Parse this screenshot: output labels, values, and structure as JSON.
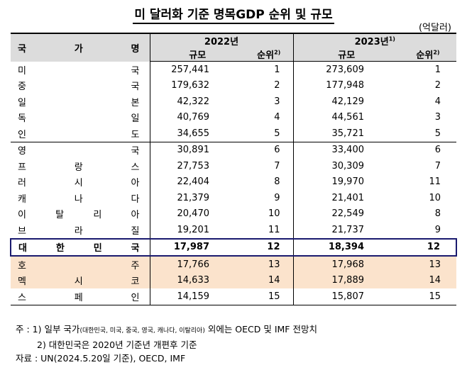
{
  "title": "미 달러화 기준 명목GDP 순위 및 규모",
  "unit": "(억달러)",
  "headers": {
    "country_chars": [
      "국",
      "가",
      "명"
    ],
    "year1": "2022년",
    "year2": "2023년",
    "year2_note": "1)",
    "size": "규모",
    "rank": "순위",
    "rank_note": "2)"
  },
  "rows": [
    {
      "chars": [
        "미",
        "국"
      ],
      "v2022": "257,441",
      "r2022": "1",
      "v2023": "273,609",
      "r2023": "1"
    },
    {
      "chars": [
        "중",
        "국"
      ],
      "v2022": "179,632",
      "r2022": "2",
      "v2023": "177,948",
      "r2023": "2"
    },
    {
      "chars": [
        "일",
        "본"
      ],
      "v2022": "42,322",
      "r2022": "3",
      "v2023": "42,129",
      "r2023": "4"
    },
    {
      "chars": [
        "독",
        "일"
      ],
      "v2022": "40,769",
      "r2022": "4",
      "v2023": "44,561",
      "r2023": "3"
    },
    {
      "chars": [
        "인",
        "도"
      ],
      "v2022": "34,655",
      "r2022": "5",
      "v2023": "35,721",
      "r2023": "5"
    },
    {
      "chars": [
        "영",
        "국"
      ],
      "v2022": "30,891",
      "r2022": "6",
      "v2023": "33,400",
      "r2023": "6"
    },
    {
      "chars": [
        "프",
        "랑",
        "스"
      ],
      "v2022": "27,753",
      "r2022": "7",
      "v2023": "30,309",
      "r2023": "7"
    },
    {
      "chars": [
        "러",
        "시",
        "아"
      ],
      "v2022": "22,404",
      "r2022": "8",
      "v2023": "19,970",
      "r2023": "11"
    },
    {
      "chars": [
        "캐",
        "나",
        "다"
      ],
      "v2022": "21,379",
      "r2022": "9",
      "v2023": "21,401",
      "r2023": "10"
    },
    {
      "chars": [
        "이",
        "탈",
        "리",
        "아"
      ],
      "v2022": "20,470",
      "r2022": "10",
      "v2023": "22,549",
      "r2023": "8"
    },
    {
      "chars": [
        "브",
        "라",
        "질"
      ],
      "v2022": "19,201",
      "r2022": "11",
      "v2023": "21,737",
      "r2023": "9"
    },
    {
      "chars": [
        "대",
        "한",
        "민",
        "국"
      ],
      "v2022": "17,987",
      "r2022": "12",
      "v2023": "18,394",
      "r2023": "12"
    },
    {
      "chars": [
        "호",
        "주"
      ],
      "v2022": "17,766",
      "r2022": "13",
      "v2023": "17,968",
      "r2023": "13"
    },
    {
      "chars": [
        "멕",
        "시",
        "코"
      ],
      "v2022": "14,633",
      "r2022": "14",
      "v2023": "17,889",
      "r2023": "14"
    },
    {
      "chars": [
        "스",
        "페",
        "인"
      ],
      "v2022": "14,159",
      "r2022": "15",
      "v2023": "15,807",
      "r2023": "15"
    }
  ],
  "notes": {
    "n1_prefix": "주 : 1) 일부 국가",
    "n1_small": "(대한민국, 미국, 중국, 영국, 캐나다, 이탈리아)",
    "n1_suffix": " 외에는 OECD 및 IMF 전망치",
    "n2": "2) 대한민국은 2020년 기준년 개편후 기준",
    "source": "자료 : UN(2024.5.20일 기준), OECD, IMF"
  }
}
